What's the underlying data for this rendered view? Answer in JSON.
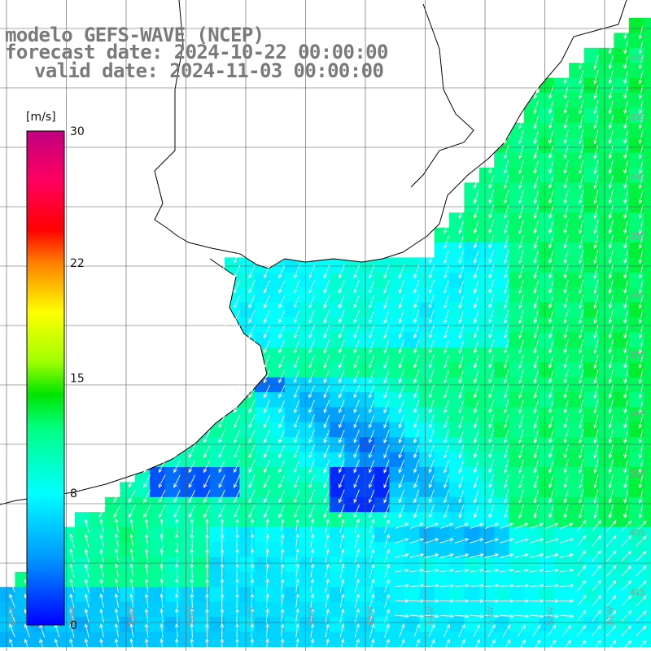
{
  "header": {
    "model": "modelo GEFS-WAVE (NCEP)",
    "forecast": "forecast date: 2024-10-22 00:00:00",
    "valid": "valid date: 2024-11-03 00:00:00"
  },
  "colorbar": {
    "unit": "[m/s]",
    "ticks": [
      "30",
      "22",
      "15",
      "8",
      "0"
    ],
    "tick_values": [
      30,
      22,
      15,
      8,
      0
    ],
    "max": 30,
    "min": 0,
    "stops": [
      {
        "v": 0,
        "c": "#0000ff"
      },
      {
        "v": 4,
        "c": "#0096ff"
      },
      {
        "v": 8,
        "c": "#00ffff"
      },
      {
        "v": 12,
        "c": "#00ff80"
      },
      {
        "v": 14,
        "c": "#00e400"
      },
      {
        "v": 16,
        "c": "#a0ff00"
      },
      {
        "v": 19,
        "c": "#ffff00"
      },
      {
        "v": 22,
        "c": "#ff8000"
      },
      {
        "v": 24,
        "c": "#ff0000"
      },
      {
        "v": 27,
        "c": "#ff0060"
      },
      {
        "v": 30,
        "c": "#c00080"
      }
    ]
  },
  "grid": {
    "lat_labels": [
      "32S",
      "33S",
      "34S",
      "35S",
      "36S",
      "37S",
      "38S",
      "39S",
      "40S",
      "41S"
    ],
    "lon_labels": [
      "61W",
      "60W",
      "59W",
      "58W",
      "57W",
      "56W",
      "55W",
      "54W",
      "53W",
      "52W",
      "51W"
    ],
    "lat_range": [
      -31.5,
      -42
    ],
    "lon_range": [
      -62,
      -51
    ]
  },
  "colors": {
    "land": "#ffffff",
    "coast": "#000000",
    "grid": "#555555",
    "arrow": "#ffffff"
  }
}
